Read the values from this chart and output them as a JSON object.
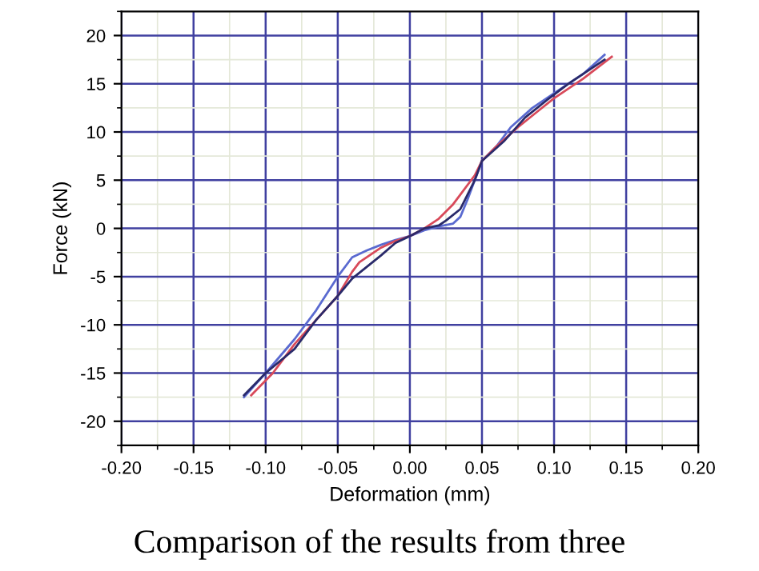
{
  "chart_data": {
    "type": "line",
    "xlabel": "Deformation (mm)",
    "ylabel": "Force (kN)",
    "xlim": [
      -0.2,
      0.2
    ],
    "ylim": [
      -22.5,
      22.5
    ],
    "xticks": [
      {
        "value": -0.2,
        "label": "-0.20"
      },
      {
        "value": -0.15,
        "label": "-0.15"
      },
      {
        "value": -0.1,
        "label": "-0.10"
      },
      {
        "value": -0.05,
        "label": "-0.05"
      },
      {
        "value": 0,
        "label": "0.00"
      },
      {
        "value": 0.05,
        "label": "0.05"
      },
      {
        "value": 0.1,
        "label": "0.10"
      },
      {
        "value": 0.15,
        "label": "0.15"
      },
      {
        "value": 0.2,
        "label": "0.20"
      }
    ],
    "yticks": [
      -20,
      -15,
      -10,
      -5,
      0,
      5,
      10,
      15,
      20
    ],
    "grid": true,
    "line_style": "solid",
    "series": [
      {
        "color": "#5a6ad0",
        "x": [
          -0.115,
          -0.1,
          -0.08,
          -0.065,
          -0.05,
          -0.04,
          -0.03,
          -0.02,
          -0.01,
          0,
          0.01,
          0.02,
          0.03,
          0.035,
          0.04,
          0.045,
          0.05,
          0.06,
          0.07,
          0.085,
          0.1,
          0.12,
          0.135
        ],
        "values": [
          -17.5,
          -15,
          -11.5,
          -8.5,
          -5,
          -3,
          -2.3,
          -1.7,
          -1.2,
          -0.8,
          -0.2,
          0.2,
          0.5,
          1.2,
          3,
          5,
          7,
          8.5,
          10.5,
          12.5,
          14,
          16,
          18
        ]
      },
      {
        "color": "#d84a5a",
        "x": [
          -0.11,
          -0.095,
          -0.08,
          -0.065,
          -0.05,
          -0.04,
          -0.035,
          -0.02,
          -0.01,
          0,
          0.01,
          0.02,
          0.03,
          0.035,
          0.045,
          0.05,
          0.06,
          0.075,
          0.09,
          0.1,
          0.12,
          0.14
        ],
        "values": [
          -17.3,
          -15,
          -12,
          -9.5,
          -7,
          -4.5,
          -3.5,
          -2,
          -1.3,
          -0.8,
          0,
          1,
          2.5,
          3.5,
          5.5,
          7,
          8.5,
          10.5,
          12.3,
          13.5,
          15.5,
          17.8
        ]
      },
      {
        "color": "#2a2a6a",
        "x": [
          -0.115,
          -0.1,
          -0.08,
          -0.065,
          -0.05,
          -0.04,
          -0.03,
          -0.02,
          -0.01,
          0,
          0.01,
          0.02,
          0.025,
          0.035,
          0.04,
          0.045,
          0.05,
          0.065,
          0.08,
          0.095,
          0.11,
          0.125,
          0.135
        ],
        "values": [
          -17.3,
          -15,
          -12.5,
          -9.5,
          -7,
          -5.2,
          -4,
          -2.8,
          -1.5,
          -0.8,
          0,
          0.3,
          0.8,
          2,
          3.5,
          5,
          7,
          9,
          11.5,
          13.3,
          15,
          16.5,
          17.5
        ]
      }
    ],
    "annotations": [
      "Comparison of the results from three"
    ]
  }
}
